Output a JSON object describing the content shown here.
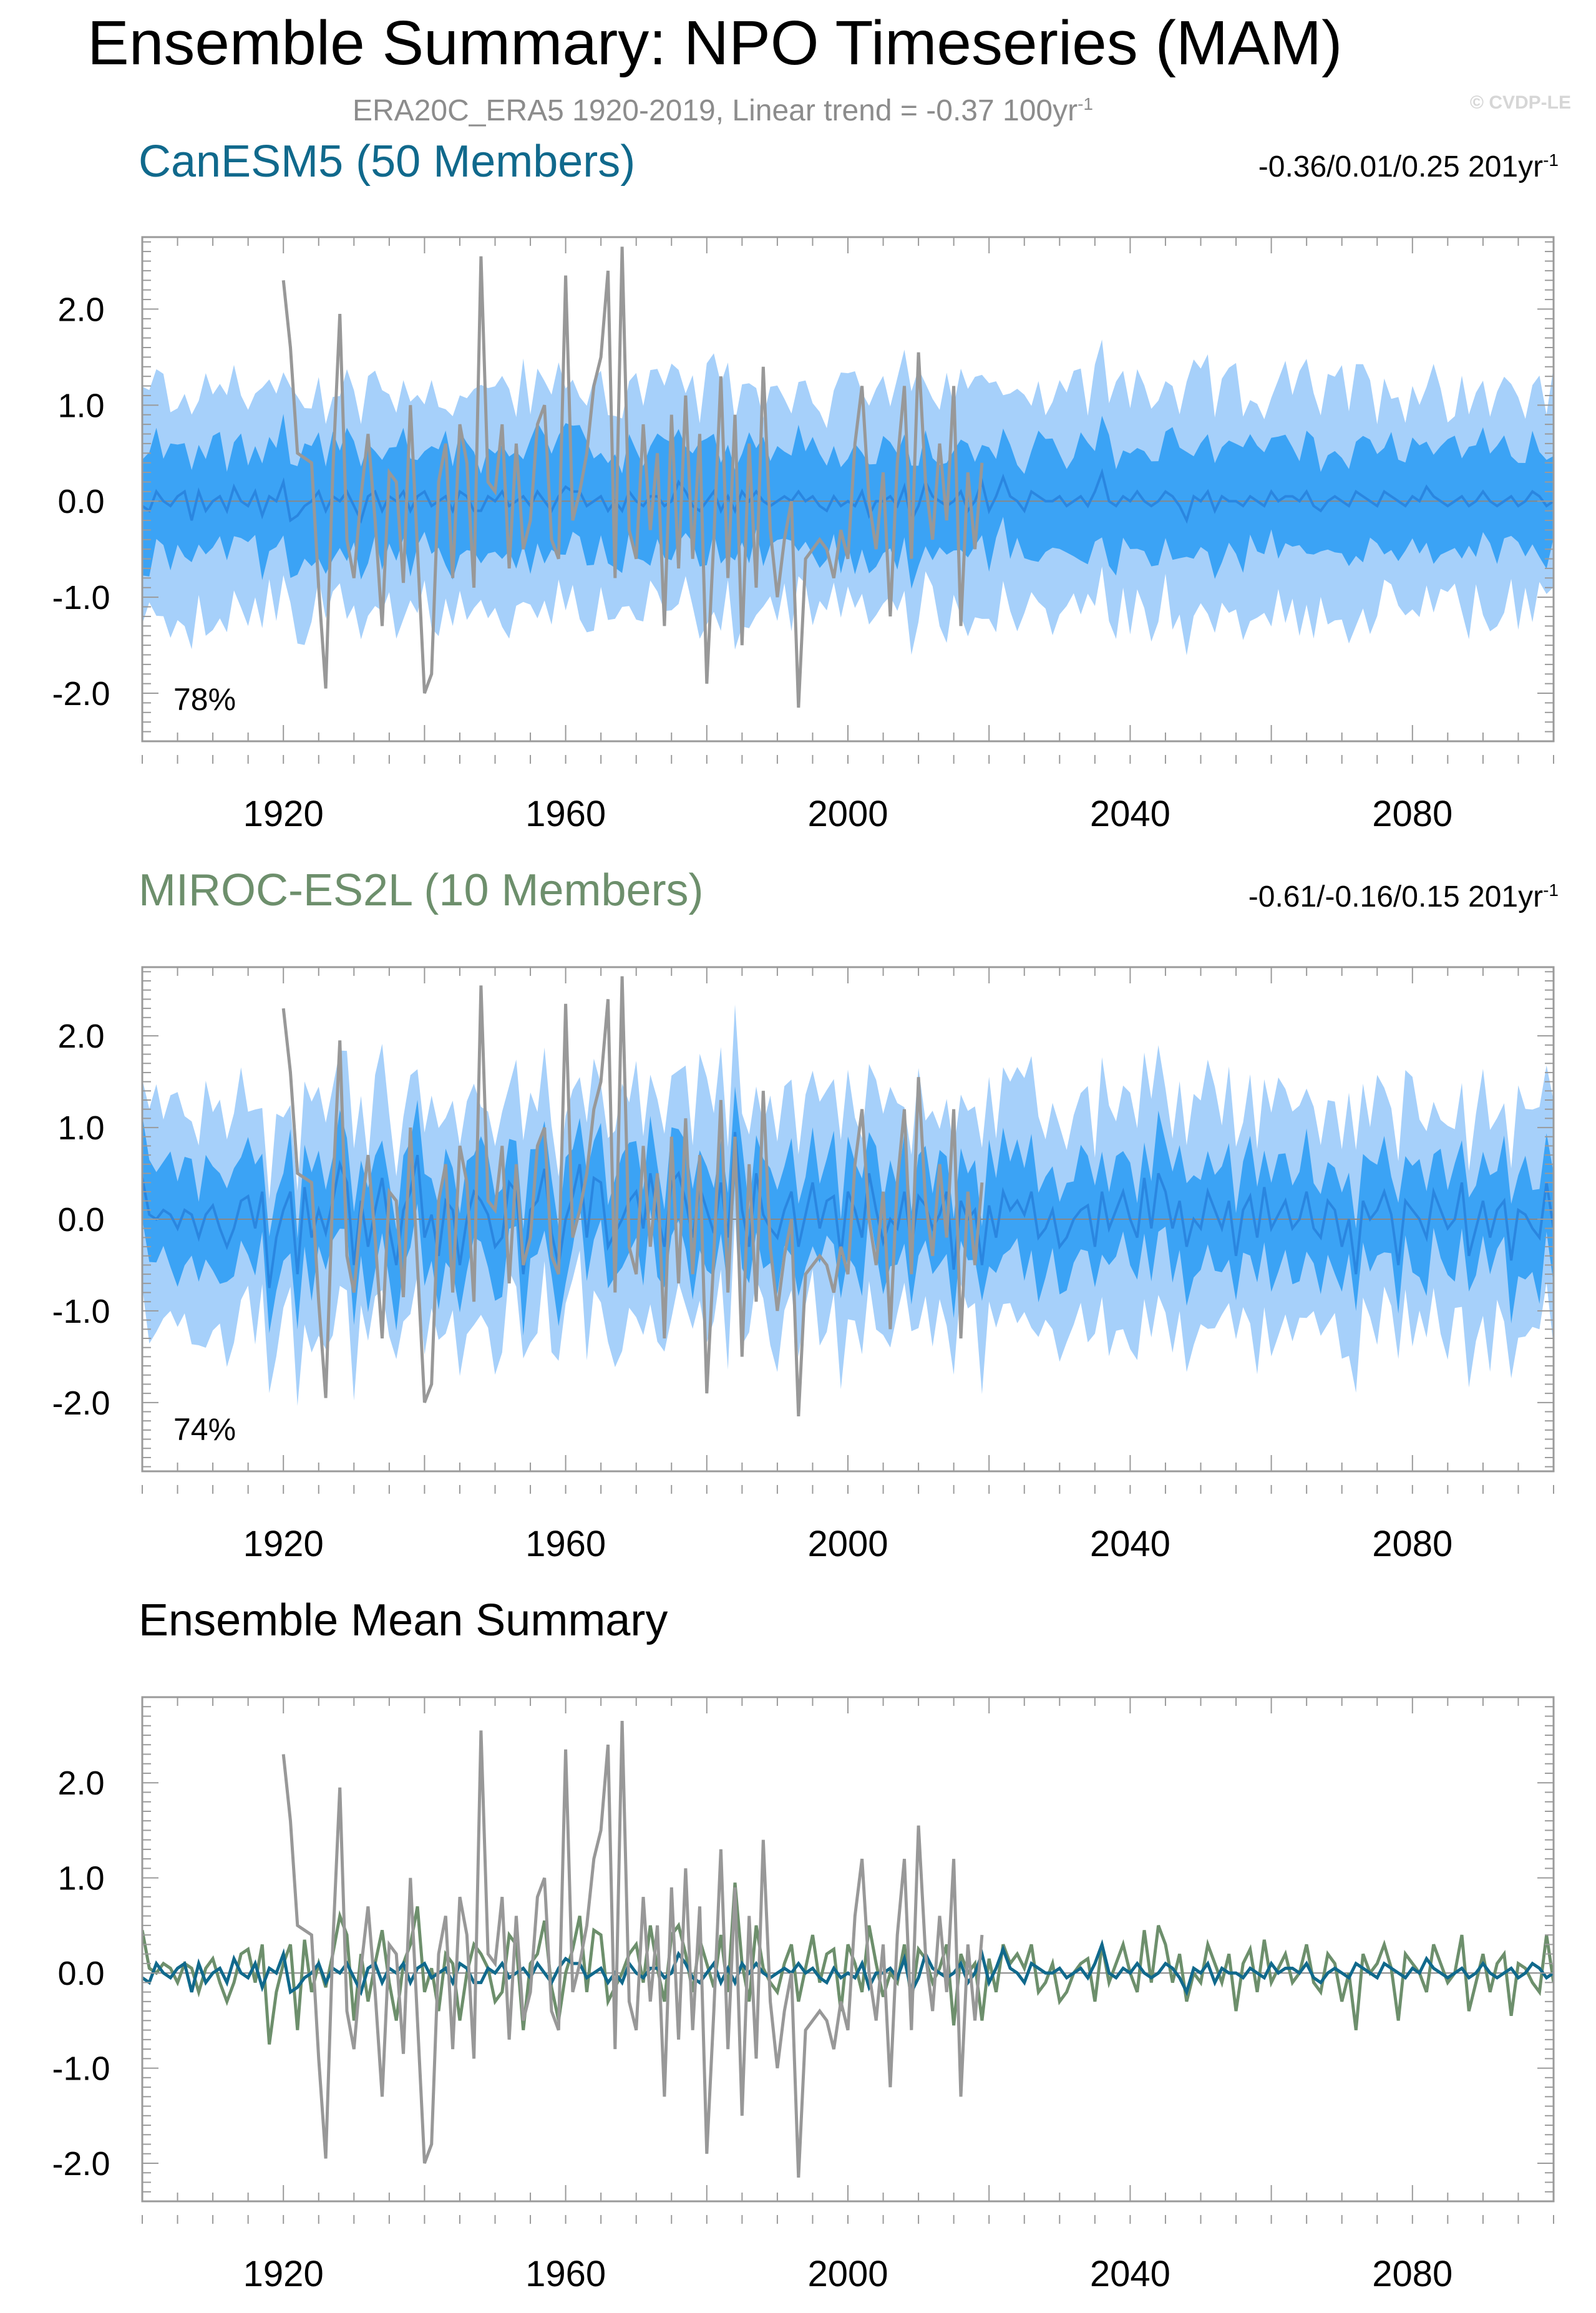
{
  "page": {
    "title": "Ensemble Summary: NPO Timeseries (MAM)",
    "subtitle_text": "ERA20C_ERA5 1920-2019, Linear trend = -0.37 100yr",
    "subtitle_sup": "-1",
    "credit": "© CVDP-LE"
  },
  "panels": [
    {
      "title": "CanESM5 (50 Members)",
      "trend_text": "-0.36/0.01/0.25 201yr",
      "trend_sup": "-1",
      "percent": "78%"
    },
    {
      "title": "MIROC-ES2L (10 Members)",
      "trend_text": "-0.61/-0.16/0.15 201yr",
      "trend_sup": "-1",
      "percent": "74%"
    },
    {
      "title": "Ensemble Mean Summary"
    }
  ],
  "colors": {
    "band_outer": "#a6d0fa",
    "band_inner": "#3ba3f5",
    "ens_mean_line": "#2a86e0",
    "observed": "#989898",
    "canesm5_mean": "#10698c",
    "miroc_mean": "#6d8f6c",
    "canesm5_title": "#10698c",
    "miroc_title": "#6d8f6c",
    "axis": "#9a9a9a"
  },
  "chart_data": [
    {
      "type": "area",
      "title": "CanESM5 (50 Members)",
      "x_range": [
        1900,
        2100
      ],
      "ylim": [
        -2.5,
        2.75
      ],
      "yticks": [
        2.0,
        1.0,
        0.0,
        -1.0,
        -2.0
      ],
      "ytick_labels": [
        "2.0",
        "1.0",
        "0.0",
        "-1.0",
        "-2.0"
      ],
      "xticks": [
        1920,
        1960,
        2000,
        2040,
        2080
      ],
      "xtick_labels": [
        "1920",
        "1960",
        "2000",
        "2040",
        "2080"
      ],
      "observed": {
        "name": "ERA20C_ERA5",
        "x": [
          1920,
          1921,
          1922,
          1923,
          1924,
          1925,
          1926,
          1927,
          1928,
          1929,
          1930,
          1931,
          1932,
          1933,
          1934,
          1935,
          1936,
          1937,
          1938,
          1939,
          1940,
          1941,
          1942,
          1943,
          1944,
          1945,
          1946,
          1947,
          1948,
          1949,
          1950,
          1951,
          1952,
          1953,
          1954,
          1955,
          1956,
          1957,
          1958,
          1959,
          1960,
          1961,
          1962,
          1963,
          1964,
          1965,
          1966,
          1967,
          1968,
          1969,
          1970,
          1971,
          1972,
          1973,
          1974,
          1975,
          1976,
          1977,
          1978,
          1979,
          1980,
          1981,
          1982,
          1983,
          1984,
          1985,
          1986,
          1987,
          1988,
          1989,
          1990,
          1991,
          1992,
          1993,
          1994,
          1995,
          1996,
          1997,
          1998,
          1999,
          2000,
          2001,
          2002,
          2003,
          2004,
          2005,
          2006,
          2007,
          2008,
          2009,
          2010,
          2011,
          2012,
          2013,
          2014,
          2015,
          2016,
          2017,
          2018,
          2019
        ],
        "values": [
          2.3,
          1.6,
          0.5,
          0.45,
          0.4,
          -0.9,
          -1.95,
          0.3,
          1.95,
          -0.4,
          -0.8,
          0.05,
          0.7,
          -0.2,
          -1.3,
          0.3,
          0.2,
          -0.85,
          1.0,
          -0.5,
          -2.0,
          -1.8,
          0.2,
          0.6,
          -0.8,
          0.8,
          0.4,
          -0.9,
          2.55,
          0.2,
          0.1,
          0.8,
          -0.7,
          0.6,
          -0.5,
          -0.2,
          0.8,
          1.0,
          -0.4,
          -0.6,
          2.35,
          -0.2,
          0.1,
          0.5,
          1.2,
          1.5,
          2.4,
          -0.8,
          2.65,
          -0.3,
          -0.6,
          0.8,
          -0.3,
          0.5,
          -1.3,
          0.9,
          -0.7,
          1.1,
          -0.6,
          0.7,
          -1.9,
          -0.4,
          1.3,
          -0.8,
          0.9,
          -1.5,
          0.6,
          -0.9,
          1.4,
          -0.3,
          -1.0,
          -0.4,
          0.0,
          -2.15,
          -0.6,
          -0.5,
          -0.4,
          -0.5,
          -0.8,
          -0.3,
          -0.6,
          0.6,
          1.2,
          0.0,
          -0.5,
          0.3,
          -1.2,
          0.4,
          1.2,
          -0.6,
          1.55,
          0.2,
          -0.4,
          0.6,
          -0.2,
          1.2,
          -1.3,
          0.3,
          -0.5,
          0.4
        ]
      },
      "percent_label": "78%"
    },
    {
      "type": "area",
      "title": "MIROC-ES2L (10 Members)",
      "x_range": [
        1900,
        2100
      ],
      "ylim": [
        -2.75,
        2.75
      ],
      "yticks": [
        2.0,
        1.0,
        0.0,
        -1.0,
        -2.0
      ],
      "ytick_labels": [
        "2.0",
        "1.0",
        "0.0",
        "-1.0",
        "-2.0"
      ],
      "xticks": [
        1920,
        1960,
        2000,
        2040,
        2080
      ],
      "xtick_labels": [
        "1920",
        "1960",
        "2000",
        "2040",
        "2080"
      ],
      "percent_label": "74%"
    },
    {
      "type": "line",
      "title": "Ensemble Mean Summary",
      "x_range": [
        1900,
        2100
      ],
      "ylim": [
        -2.4,
        2.9
      ],
      "yticks": [
        2.0,
        1.0,
        0.0,
        -1.0,
        -2.0
      ],
      "ytick_labels": [
        "2.0",
        "1.0",
        "0.0",
        "-1.0",
        "-2.0"
      ],
      "xticks": [
        1920,
        1960,
        2000,
        2040,
        2080
      ],
      "xtick_labels": [
        "1920",
        "1960",
        "2000",
        "2040",
        "2080"
      ],
      "series": [
        {
          "name": "CanESM5 ensemble mean",
          "x0": 1900,
          "values": [
            -0.05,
            -0.1,
            0.1,
            0.0,
            -0.05,
            0.05,
            0.1,
            -0.2,
            0.1,
            -0.1,
            0.0,
            0.05,
            -0.1,
            0.15,
            0.0,
            -0.05,
            0.1,
            -0.15,
            0.05,
            0.0,
            0.2,
            -0.2,
            -0.15,
            -0.05,
            0.0,
            0.1,
            -0.1,
            0.05,
            0.0,
            0.1,
            -0.05,
            -0.2,
            0.05,
            0.1,
            -0.1,
            0.05,
            0.0,
            0.1,
            -0.1,
            0.05,
            0.1,
            -0.05,
            0.0,
            0.05,
            -0.1,
            0.1,
            0.05,
            -0.1,
            -0.1,
            0.05,
            0.0,
            0.1,
            -0.05,
            0.0,
            0.05,
            -0.05,
            0.1,
            0.0,
            -0.1,
            0.05,
            0.15,
            0.1,
            0.1,
            -0.05,
            0.0,
            0.05,
            -0.1,
            0.0,
            -0.1,
            0.1,
            0.0,
            -0.05,
            0.05,
            0.05,
            -0.05,
            0.0,
            0.2,
            0.1,
            -0.05,
            -0.1,
            0.0,
            0.1,
            -0.1,
            0.05,
            -0.1,
            0.1,
            0.0,
            0.1,
            0.0,
            -0.05,
            0.0,
            0.05,
            0.0,
            0.1,
            0.0,
            0.05,
            -0.05,
            -0.1,
            0.05,
            -0.05,
            0.0,
            -0.05,
            0.1,
            -0.15,
            0.0,
            0.0,
            0.05,
            -0.05,
            0.15,
            -0.2,
            -0.05,
            0.2,
            0.05,
            0.0,
            -0.05,
            0.0,
            0.1,
            -0.1,
            0.0,
            0.2,
            -0.1,
            0.05,
            0.25,
            0.05,
            0.0,
            -0.1,
            0.1,
            0.05,
            0.0,
            0.0,
            0.05,
            -0.05,
            0.0,
            0.05,
            -0.05,
            0.1,
            0.3,
            0.0,
            -0.05,
            0.05,
            0.0,
            0.1,
            0.0,
            -0.05,
            0.0,
            0.1,
            0.05,
            -0.05,
            -0.2,
            0.05,
            0.0,
            0.1,
            -0.1,
            0.05,
            0.0,
            0.0,
            -0.05,
            0.05,
            0.0,
            -0.05,
            0.1,
            0.0,
            0.05,
            0.05,
            0.0,
            0.1,
            -0.05,
            -0.1,
            0.0,
            0.05,
            0.0,
            -0.05,
            0.1,
            0.05,
            0.0,
            -0.05,
            0.1,
            0.05,
            0.0,
            -0.05,
            0.05,
            0.0,
            0.15,
            0.05,
            0.0,
            -0.05,
            0.0,
            0.05,
            -0.05,
            0.0,
            0.1,
            0.0,
            -0.05,
            0.0,
            0.05,
            -0.05,
            0.0,
            0.1,
            0.05,
            -0.05,
            0.0,
            0.05,
            -0.1,
            -0.05,
            0.05,
            -0.05,
            0.05,
            0.0,
            -0.2,
            -0.05
          ]
        },
        {
          "name": "MIROC-ES2L ensemble mean",
          "x0": 1900,
          "values": [
            0.45,
            0.05,
            0.0,
            0.1,
            0.05,
            -0.1,
            0.1,
            0.05,
            -0.2,
            0.05,
            0.15,
            -0.1,
            -0.3,
            -0.1,
            0.2,
            0.25,
            -0.1,
            0.3,
            -0.75,
            -0.2,
            0.1,
            0.3,
            -0.6,
            0.35,
            -0.2,
            0.1,
            -0.15,
            0.2,
            0.6,
            0.4,
            -0.5,
            0.2,
            -0.3,
            0.1,
            0.45,
            -0.1,
            -0.5,
            0.1,
            0.3,
            0.7,
            -0.2,
            0.05,
            -0.4,
            0.2,
            0.1,
            -0.5,
            0.0,
            0.3,
            0.2,
            0.05,
            -0.3,
            -0.2,
            0.4,
            0.3,
            -0.6,
            0.1,
            0.2,
            0.55,
            -0.15,
            -0.5,
            0.0,
            0.25,
            0.6,
            -0.2,
            0.45,
            0.4,
            -0.3,
            -0.15,
            0.0,
            0.2,
            0.3,
            -0.1,
            0.5,
            0.05,
            -0.3,
            0.4,
            0.5,
            0.2,
            -0.2,
            0.35,
            0.1,
            -0.15,
            0.4,
            -0.2,
            0.95,
            0.1,
            -0.3,
            0.5,
            0.05,
            -0.1,
            -0.2,
            0.1,
            0.3,
            -0.3,
            0.05,
            0.4,
            -0.1,
            0.2,
            0.25,
            -0.4,
            0.3,
            0.1,
            -0.2,
            0.5,
            0.1,
            -0.25,
            0.0,
            -0.1,
            0.3,
            -0.3,
            0.25,
            0.15,
            -0.1,
            0.05,
            0.3,
            -0.55,
            0.2,
            0.0,
            0.1,
            -0.5,
            0.15,
            -0.2,
            0.3,
            0.1,
            0.2,
            0.05,
            0.3,
            -0.2,
            -0.1,
            0.1,
            -0.3,
            -0.2,
            0.0,
            0.1,
            0.15,
            -0.3,
            0.3,
            -0.1,
            0.1,
            0.3,
            0.0,
            -0.2,
            0.45,
            -0.1,
            0.5,
            0.3,
            -0.1,
            0.2,
            -0.3,
            0.0,
            -0.1,
            0.3,
            0.1,
            -0.1,
            0.2,
            -0.4,
            0.1,
            0.25,
            -0.2,
            0.35,
            -0.1,
            0.05,
            0.2,
            -0.1,
            0.0,
            0.3,
            -0.1,
            -0.2,
            0.2,
            0.1,
            -0.3,
            0.0,
            -0.6,
            0.2,
            0.0,
            0.1,
            0.3,
            0.05,
            -0.5,
            0.2,
            0.1,
            0.0,
            -0.2,
            0.3,
            0.1,
            -0.1,
            0.0,
            0.4,
            -0.4,
            -0.1,
            0.2,
            -0.2,
            0.1,
            0.2,
            -0.45,
            0.1,
            0.05,
            -0.1,
            -0.2,
            0.4,
            -0.1,
            0.3,
            -0.3,
            0.1,
            0.0,
            -0.1,
            0.25
          ]
        }
      ]
    }
  ]
}
